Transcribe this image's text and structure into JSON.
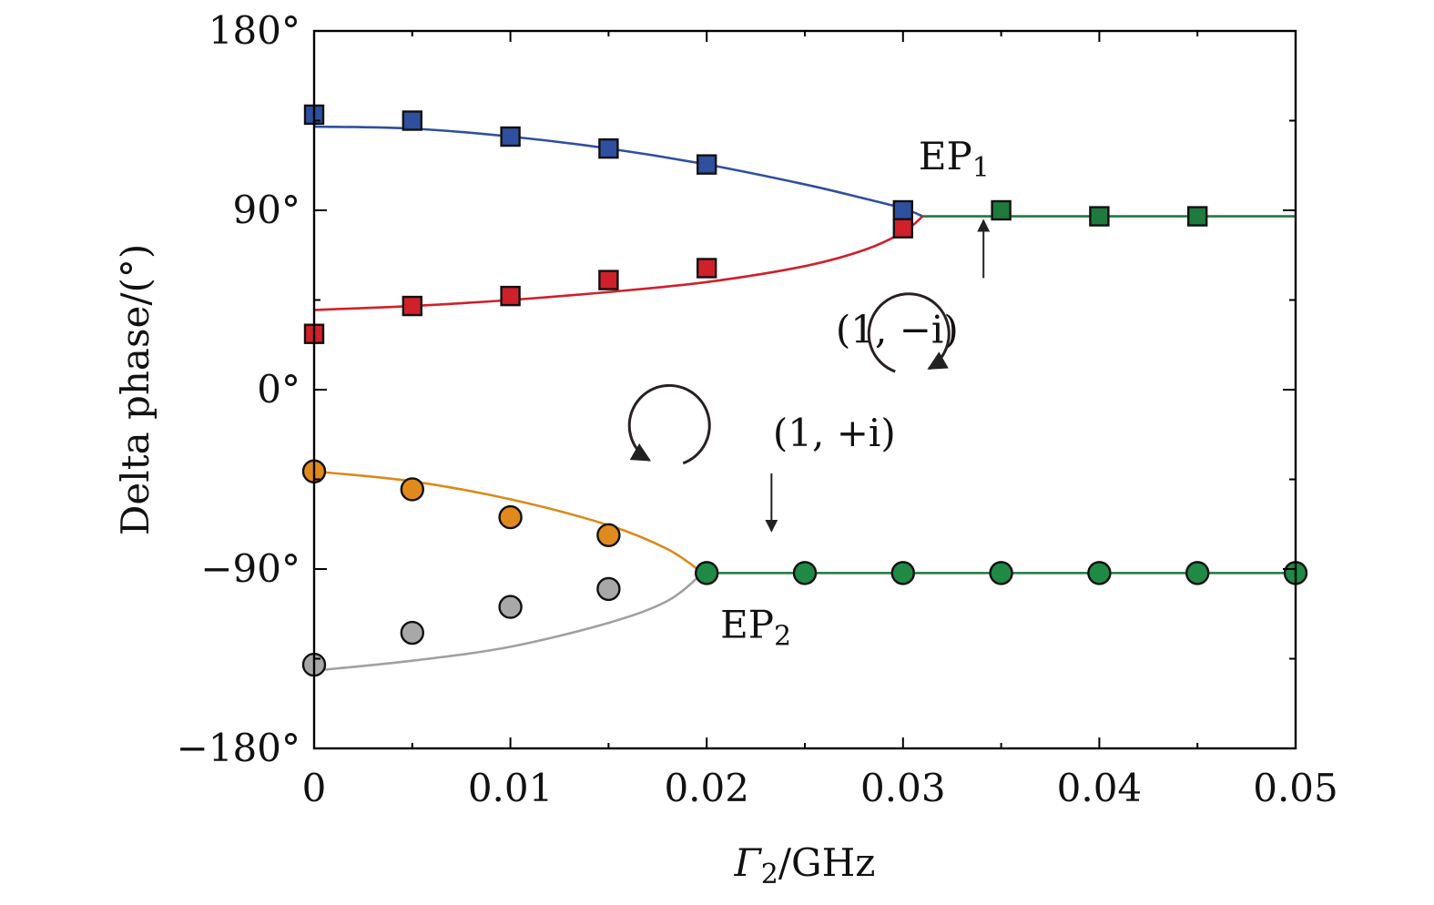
{
  "chart_data": {
    "type": "scatter",
    "xlabel": {
      "main": "Γ",
      "sub": "2",
      "rest": "/GHz"
    },
    "ylabel": "Delta phase/(°)",
    "xlim": [
      0,
      0.05
    ],
    "ylim": [
      -180,
      180
    ],
    "xticks": [
      {
        "value": 0,
        "label": "0"
      },
      {
        "value": 0.01,
        "label": "0.01"
      },
      {
        "value": 0.02,
        "label": "0.02"
      },
      {
        "value": 0.03,
        "label": "0.03"
      },
      {
        "value": 0.04,
        "label": "0.04"
      },
      {
        "value": 0.05,
        "label": "0.05"
      }
    ],
    "yticks": [
      {
        "value": 180,
        "label": "180°"
      },
      {
        "value": 90,
        "label": "90°"
      },
      {
        "value": 0,
        "label": "0°"
      },
      {
        "value": -90,
        "label": "−90°"
      },
      {
        "value": -180,
        "label": "−180°"
      }
    ],
    "curves": [
      {
        "color": "#2f4f9f",
        "x": [
          0,
          0.005,
          0.01,
          0.015,
          0.02,
          0.025,
          0.028,
          0.03,
          0.031
        ],
        "y": [
          132,
          131,
          127,
          121,
          113,
          103,
          96,
          91,
          87
        ]
      },
      {
        "color": "#d0202a",
        "x": [
          0,
          0.005,
          0.01,
          0.015,
          0.02,
          0.025,
          0.028,
          0.03,
          0.031
        ],
        "y": [
          40,
          42,
          45,
          49,
          54,
          62,
          70,
          79,
          87
        ]
      },
      {
        "color": "#1f7a3d",
        "x": [
          0.031,
          0.05
        ],
        "y": [
          87,
          87
        ]
      },
      {
        "color": "#d98a1a",
        "x": [
          0,
          0.005,
          0.01,
          0.015,
          0.018,
          0.0198
        ],
        "y": [
          -41,
          -46,
          -55,
          -68,
          -80,
          -92
        ]
      },
      {
        "color": "#a0a0a0",
        "x": [
          0,
          0.005,
          0.01,
          0.015,
          0.018,
          0.0198
        ],
        "y": [
          -141,
          -136,
          -129,
          -117,
          -106,
          -92
        ]
      },
      {
        "color": "#1f7a3d",
        "x": [
          0.0198,
          0.05
        ],
        "y": [
          -92,
          -92
        ]
      }
    ],
    "series": [
      {
        "marker": "square",
        "color": "#2f4f9f",
        "points": [
          [
            0,
            138
          ],
          [
            0.005,
            135
          ],
          [
            0.01,
            127
          ],
          [
            0.015,
            121
          ],
          [
            0.02,
            113
          ],
          [
            0.03,
            90
          ]
        ]
      },
      {
        "marker": "square",
        "color": "#d0202a",
        "points": [
          [
            0,
            28
          ],
          [
            0.005,
            42
          ],
          [
            0.01,
            47
          ],
          [
            0.015,
            55
          ],
          [
            0.02,
            61
          ],
          [
            0.03,
            81
          ]
        ]
      },
      {
        "marker": "square",
        "color": "#1f7a3d",
        "points": [
          [
            0.035,
            90
          ],
          [
            0.04,
            87
          ],
          [
            0.045,
            87
          ]
        ]
      },
      {
        "marker": "circle",
        "color": "#e08a1e",
        "points": [
          [
            0,
            -41
          ],
          [
            0.005,
            -50
          ],
          [
            0.01,
            -64
          ],
          [
            0.015,
            -73
          ]
        ]
      },
      {
        "marker": "circle",
        "color": "#a8a8a8",
        "points": [
          [
            0,
            -138
          ],
          [
            0.005,
            -122
          ],
          [
            0.01,
            -109
          ],
          [
            0.015,
            -100
          ]
        ]
      },
      {
        "marker": "circle",
        "color": "#1f8a45",
        "points": [
          [
            0.02,
            -92
          ],
          [
            0.025,
            -92
          ],
          [
            0.03,
            -92
          ],
          [
            0.035,
            -92
          ],
          [
            0.04,
            -92
          ],
          [
            0.045,
            -92
          ],
          [
            0.05,
            -92
          ]
        ]
      }
    ],
    "annotations": [
      {
        "id": "ep1",
        "main": "EP",
        "sub": "1",
        "x": 0.0326,
        "y": 117
      },
      {
        "id": "ep2",
        "main": "EP",
        "sub": "2",
        "x": 0.0225,
        "y": -118
      },
      {
        "id": "pol-minus",
        "text": "(1,  −i)",
        "x": 0.0297,
        "y": 30
      },
      {
        "id": "pol-plus",
        "text": "(1,  +i)",
        "x": 0.0265,
        "y": -22
      }
    ],
    "arrows": [
      {
        "id": "arrow-minus",
        "from": [
          0.0341,
          56
        ],
        "to": [
          0.0341,
          85
        ]
      },
      {
        "id": "arrow-plus",
        "from": [
          0.0233,
          -42
        ],
        "to": [
          0.0233,
          -71
        ]
      }
    ],
    "rotation_icons": [
      {
        "id": "rotation-cw",
        "cx": 0.0303,
        "cy": 28,
        "dir": "cw"
      },
      {
        "id": "rotation-ccw",
        "cx": 0.0181,
        "cy": -18,
        "dir": "ccw"
      }
    ]
  }
}
